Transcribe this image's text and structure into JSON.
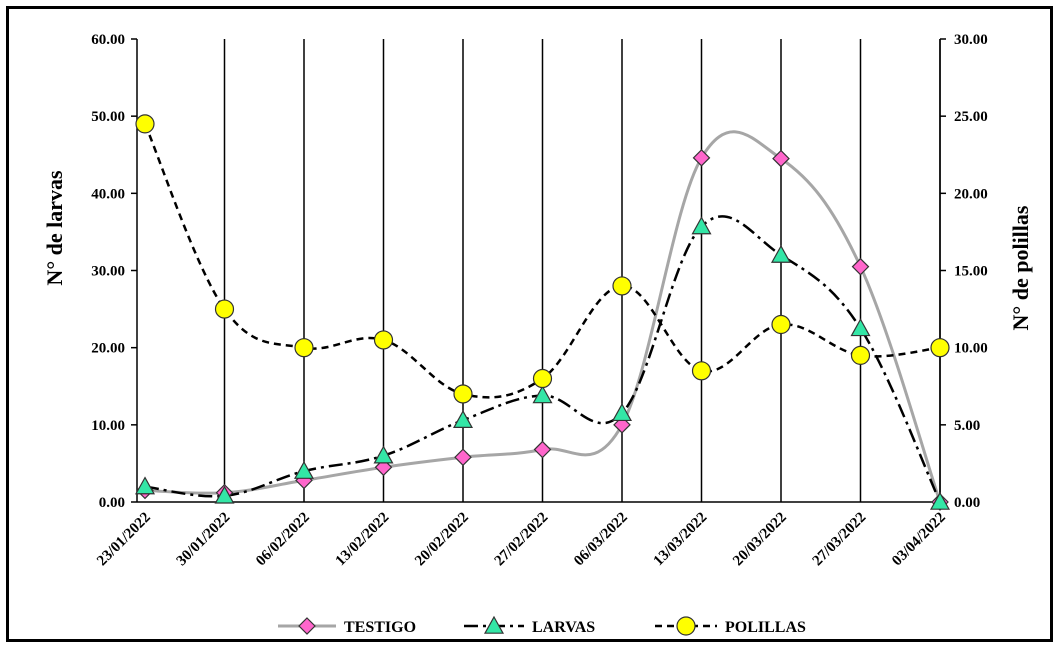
{
  "chart_data": {
    "type": "line",
    "title": "",
    "categories": [
      "23/01/2022",
      "30/01/2022",
      "06/02/2022",
      "13/02/2022",
      "20/02/2022",
      "27/02/2022",
      "06/03/2022",
      "13/03/2022",
      "20/03/2022",
      "27/03/2022",
      "03/04/2022"
    ],
    "ylabel_left": "N° de larvas",
    "ylabel_right": "N° de polillas",
    "ylim_left": [
      0,
      60
    ],
    "ylim_right": [
      0,
      30
    ],
    "yticks_left": [
      "0.00",
      "10.00",
      "20.00",
      "30.00",
      "40.00",
      "50.00",
      "60.00"
    ],
    "yticks_right": [
      "0.00",
      "5.00",
      "10.00",
      "15.00",
      "20.00",
      "25.00",
      "30.00"
    ],
    "vertical_gridlines": true,
    "legend_position": "bottom",
    "series": [
      {
        "name": "TESTIGO",
        "axis": "left",
        "values": [
          1.5,
          1.2,
          2.8,
          4.5,
          5.8,
          6.8,
          10.0,
          44.6,
          44.5,
          30.5,
          0.0
        ],
        "line_color": "#a6a6a6",
        "line_style": "solid",
        "marker": "diamond",
        "marker_color": "#ff66cc"
      },
      {
        "name": "LARVAS",
        "axis": "left",
        "values": [
          2.0,
          0.8,
          4.0,
          6.0,
          10.6,
          13.8,
          11.5,
          35.7,
          32.0,
          22.5,
          0.0
        ],
        "line_color": "#000000",
        "line_style": "dashdot",
        "marker": "triangle",
        "marker_color": "#33e6a6"
      },
      {
        "name": "POLILLAS",
        "axis": "right",
        "values": [
          24.5,
          12.5,
          10.0,
          10.5,
          7.0,
          8.0,
          14.0,
          8.5,
          11.5,
          9.5,
          10.0
        ],
        "line_color": "#000000",
        "line_style": "dashed",
        "marker": "circle",
        "marker_color": "#ffff00"
      }
    ]
  }
}
